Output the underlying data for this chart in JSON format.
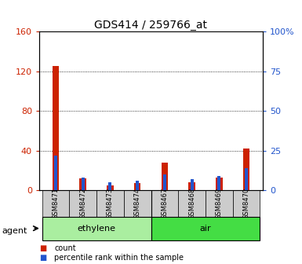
{
  "title": "GDS414 / 259766_at",
  "samples": [
    "GSM8471",
    "GSM8472",
    "GSM8473",
    "GSM8474",
    "GSM8467",
    "GSM8468",
    "GSM8469",
    "GSM8470"
  ],
  "count_values": [
    125,
    12,
    5,
    7,
    28,
    8,
    13,
    42
  ],
  "percentile_values": [
    22,
    8,
    5,
    6,
    10,
    7,
    9,
    14
  ],
  "left_ylim": [
    0,
    160
  ],
  "right_ylim": [
    0,
    100
  ],
  "left_yticks": [
    0,
    40,
    80,
    120,
    160
  ],
  "right_yticks": [
    0,
    25,
    50,
    75,
    100
  ],
  "right_yticklabels": [
    "0",
    "25",
    "50",
    "75",
    "100%"
  ],
  "count_color": "#cc2200",
  "percentile_color": "#2255cc",
  "groups": [
    {
      "label": "ethylene",
      "start": 0,
      "end": 4,
      "color": "#aaeea0"
    },
    {
      "label": "air",
      "start": 4,
      "end": 8,
      "color": "#44dd44"
    }
  ],
  "agent_label": "agent",
  "legend_items": [
    {
      "label": "count",
      "color": "#cc2200"
    },
    {
      "label": "percentile rank within the sample",
      "color": "#2255cc"
    }
  ],
  "bar_width": 0.25,
  "bg_color": "#ffffff",
  "tick_area_color": "#cccccc",
  "grid_linestyle": ":"
}
